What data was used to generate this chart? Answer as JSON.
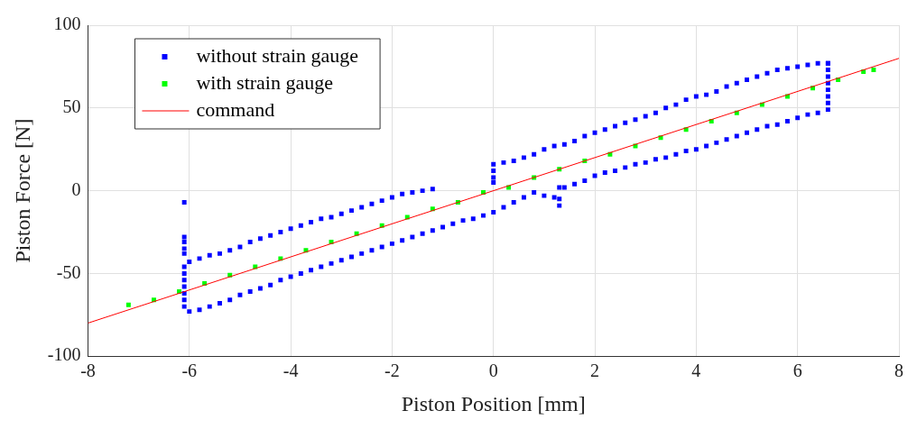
{
  "chart_data": {
    "type": "scatter",
    "xlabel": "Piston Position [mm]",
    "ylabel": "Piston Force [N]",
    "xlim": [
      -8,
      8
    ],
    "xticks": [
      -8,
      -6,
      -4,
      -2,
      0,
      2,
      4,
      6,
      8
    ],
    "ylim": [
      -100,
      100
    ],
    "yticks": [
      -100,
      -50,
      0,
      50,
      100
    ],
    "grid": true,
    "legend": "top left",
    "series": [
      {
        "name": "without strain gauge",
        "color": "#0000ff",
        "marker": "square",
        "x": [
          -6.0,
          -5.8,
          -5.6,
          -5.4,
          -5.2,
          -5.0,
          -4.8,
          -4.6,
          -4.4,
          -4.2,
          -4.0,
          -3.8,
          -3.6,
          -3.4,
          -3.2,
          -3.0,
          -2.8,
          -2.6,
          -2.4,
          -2.2,
          -2.0,
          -1.8,
          -1.6,
          -1.4,
          -1.2,
          -6.0,
          -5.8,
          -5.6,
          -5.4,
          -5.2,
          -5.0,
          -4.8,
          -4.6,
          -4.4,
          -4.2,
          -4.0,
          -3.8,
          -3.6,
          -3.4,
          -3.2,
          -3.0,
          -2.8,
          -2.6,
          -2.4,
          -2.2,
          -2.0,
          -1.8,
          -1.6,
          -1.4,
          -1.2,
          -1.0,
          -0.8,
          -0.6,
          -0.4,
          -0.2,
          0.0,
          0.2,
          0.4,
          0.6,
          0.8,
          1.0,
          1.2,
          1.3,
          1.3,
          1.3,
          1.4,
          1.6,
          1.8,
          2.0,
          2.2,
          2.4,
          2.6,
          2.8,
          3.0,
          3.2,
          3.4,
          3.6,
          3.8,
          4.0,
          4.2,
          4.4,
          4.6,
          4.8,
          5.0,
          5.2,
          5.4,
          5.6,
          5.8,
          6.0,
          6.2,
          6.4,
          6.6,
          6.6,
          6.6,
          6.6,
          6.6,
          6.6,
          6.6,
          6.6,
          0.0,
          0.2,
          0.4,
          0.6,
          0.8,
          1.0,
          1.2,
          1.4,
          1.6,
          1.8,
          2.0,
          2.2,
          2.4,
          2.6,
          2.8,
          3.0,
          3.2,
          3.4,
          3.6,
          3.8,
          4.0,
          4.2,
          4.4,
          4.6,
          4.8,
          5.0,
          5.2,
          5.4,
          5.6,
          5.8,
          6.0,
          6.2,
          6.4,
          6.6,
          0.0,
          0.0,
          0.0,
          -6.1,
          -6.1,
          -6.1,
          -6.1,
          -6.1,
          -6.1,
          -6.1,
          -6.1,
          -6.1,
          -6.1,
          -6.1,
          -6.1
        ],
        "values": [
          -43,
          -41,
          -39,
          -38,
          -36,
          -34,
          -31,
          -29,
          -27,
          -25,
          -23,
          -21,
          -19,
          -17,
          -16,
          -14,
          -12,
          -10,
          -8,
          -6,
          -4,
          -2,
          -1,
          0,
          1,
          -73,
          -72,
          -70,
          -68,
          -66,
          -63,
          -61,
          -59,
          -57,
          -54,
          -52,
          -50,
          -48,
          -46,
          -44,
          -42,
          -40,
          -38,
          -36,
          -34,
          -32,
          -30,
          -28,
          -26,
          -24,
          -22,
          -20,
          -18,
          -17,
          -15,
          -13,
          -10,
          -7,
          -4,
          -1,
          -3,
          -4,
          -9,
          -5,
          2,
          2,
          4,
          6,
          9,
          11,
          12,
          14,
          16,
          17,
          19,
          20,
          22,
          24,
          25,
          27,
          29,
          31,
          33,
          35,
          37,
          39,
          40,
          42,
          44,
          46,
          47,
          49,
          53,
          57,
          61,
          65,
          69,
          73,
          77,
          16,
          17,
          18,
          20,
          22,
          25,
          27,
          28,
          30,
          33,
          35,
          37,
          39,
          41,
          43,
          45,
          47,
          50,
          52,
          55,
          57,
          58,
          60,
          63,
          65,
          67,
          69,
          71,
          73,
          74,
          75,
          76,
          77,
          77,
          5,
          8,
          12,
          -70,
          -66,
          -62,
          -58,
          -54,
          -50,
          -46,
          -7,
          -28,
          -31,
          -35,
          -38
        ]
      },
      {
        "name": "with strain gauge",
        "color": "#00ff00",
        "marker": "square",
        "x": [
          -7.2,
          -6.7,
          -6.2,
          -5.7,
          -5.2,
          -4.7,
          -4.2,
          -3.7,
          -3.2,
          -2.7,
          -2.2,
          -1.7,
          -1.2,
          -0.7,
          -0.2,
          0.3,
          0.8,
          1.3,
          1.8,
          2.3,
          2.8,
          3.3,
          3.8,
          4.3,
          4.8,
          5.3,
          5.8,
          6.3,
          6.8,
          7.3,
          7.5
        ],
        "values": [
          -69,
          -66,
          -61,
          -56,
          -51,
          -46,
          -41,
          -36,
          -31,
          -26,
          -21,
          -16,
          -11,
          -7,
          -1,
          2,
          8,
          13,
          18,
          22,
          27,
          32,
          37,
          42,
          47,
          52,
          57,
          62,
          67,
          72,
          73
        ]
      },
      {
        "name": "command",
        "color": "#ff0000",
        "type": "line",
        "marker": "none",
        "line_style": "solid",
        "x": [
          -8,
          8
        ],
        "values": [
          -80,
          80
        ]
      }
    ]
  }
}
